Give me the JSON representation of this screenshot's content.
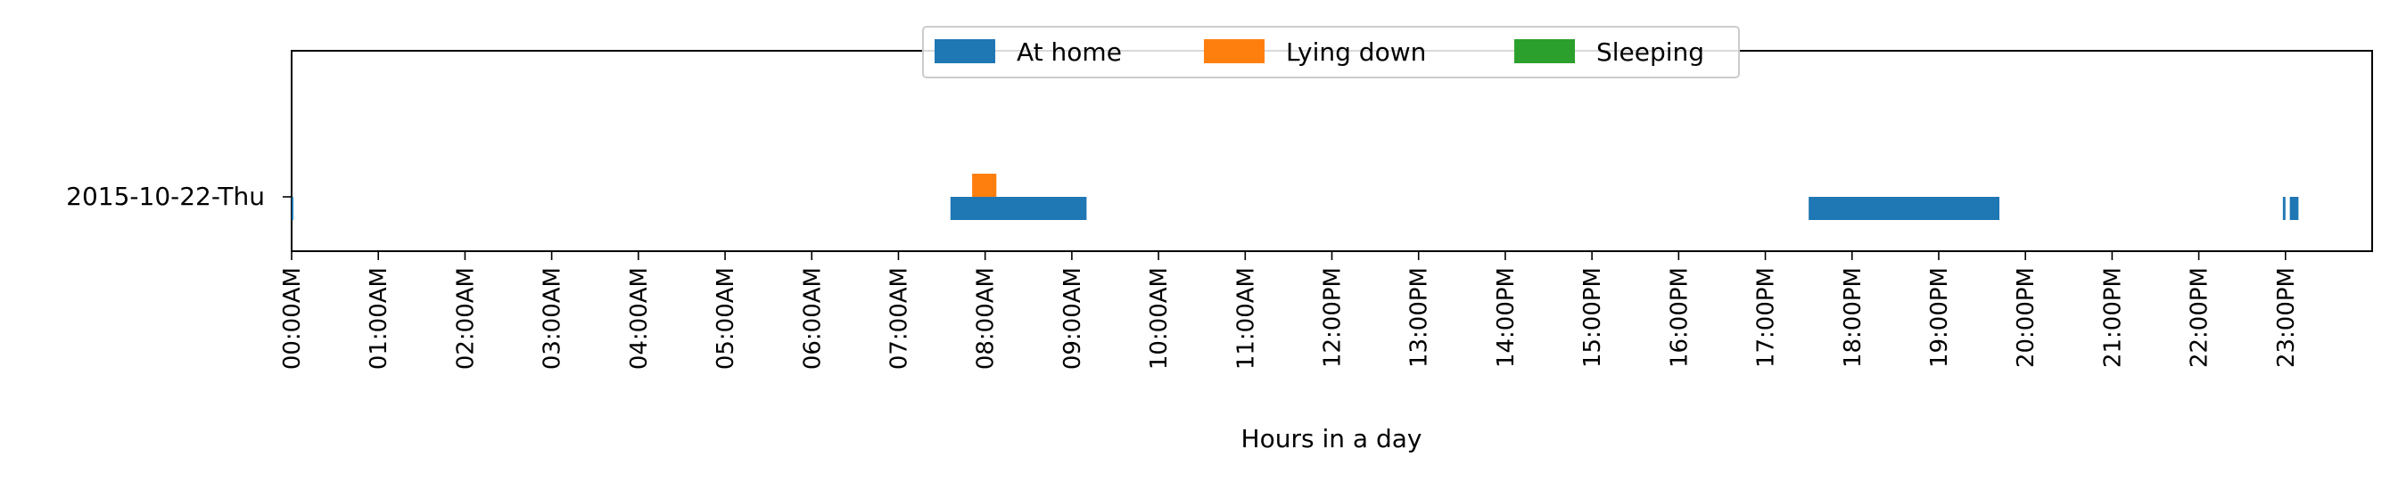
{
  "chart_data": {
    "type": "timeline",
    "xlabel": "Hours in a day",
    "xlim": [
      0,
      24
    ],
    "categories": [
      "2015-10-22-Thu"
    ],
    "xticks": [
      {
        "v": 0,
        "label": "00:00AM"
      },
      {
        "v": 1,
        "label": "01:00AM"
      },
      {
        "v": 2,
        "label": "02:00AM"
      },
      {
        "v": 3,
        "label": "03:00AM"
      },
      {
        "v": 4,
        "label": "04:00AM"
      },
      {
        "v": 5,
        "label": "05:00AM"
      },
      {
        "v": 6,
        "label": "06:00AM"
      },
      {
        "v": 7,
        "label": "07:00AM"
      },
      {
        "v": 8,
        "label": "08:00AM"
      },
      {
        "v": 9,
        "label": "09:00AM"
      },
      {
        "v": 10,
        "label": "10:00AM"
      },
      {
        "v": 11,
        "label": "11:00AM"
      },
      {
        "v": 12,
        "label": "12:00PM"
      },
      {
        "v": 13,
        "label": "13:00PM"
      },
      {
        "v": 14,
        "label": "14:00PM"
      },
      {
        "v": 15,
        "label": "15:00PM"
      },
      {
        "v": 16,
        "label": "16:00PM"
      },
      {
        "v": 17,
        "label": "17:00PM"
      },
      {
        "v": 18,
        "label": "18:00PM"
      },
      {
        "v": 19,
        "label": "19:00PM"
      },
      {
        "v": 20,
        "label": "20:00PM"
      },
      {
        "v": 21,
        "label": "21:00PM"
      },
      {
        "v": 22,
        "label": "22:00PM"
      },
      {
        "v": 23,
        "label": "23:00PM"
      }
    ],
    "legend_position": "top-center",
    "series": [
      {
        "name": "At home",
        "color": "#1f77b4",
        "intervals": [
          {
            "category": "2015-10-22-Thu",
            "start": 0.0,
            "end": 0.02
          },
          {
            "category": "2015-10-22-Thu",
            "start": 7.6,
            "end": 9.17
          },
          {
            "category": "2015-10-22-Thu",
            "start": 17.5,
            "end": 19.7
          },
          {
            "category": "2015-10-22-Thu",
            "start": 22.97,
            "end": 23.0
          },
          {
            "category": "2015-10-22-Thu",
            "start": 23.05,
            "end": 23.15
          }
        ]
      },
      {
        "name": "Lying down",
        "color": "#ff7f0e",
        "intervals": [
          {
            "category": "2015-10-22-Thu",
            "start": 7.85,
            "end": 8.13
          }
        ]
      },
      {
        "name": "Sleeping",
        "color": "#2ca02c",
        "intervals": []
      }
    ]
  }
}
